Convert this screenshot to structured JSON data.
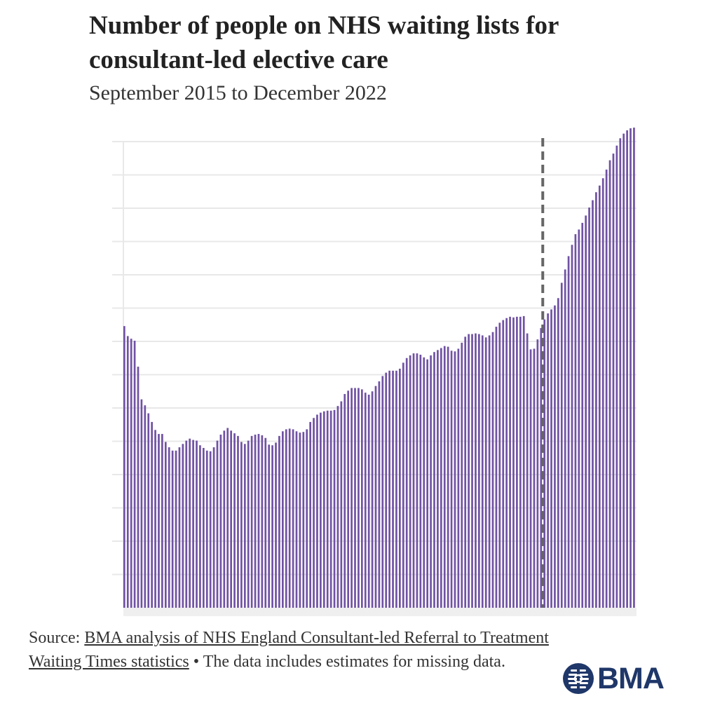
{
  "chart_data": {
    "type": "bar",
    "title": "Number of people on NHS waiting lists for consultant-led elective care",
    "subtitle": "September 2015 to December 2022",
    "xlabel": "",
    "ylabel": "",
    "bar_color": "#7052a3",
    "marker_color": "#666666",
    "ylim": [
      0,
      7.2
    ],
    "gridlines": [
      0.5,
      1.0,
      1.5,
      2.0,
      2.5,
      3.0,
      3.5,
      4.0,
      4.5,
      5.0,
      5.5,
      6.0,
      6.5,
      7.0
    ],
    "marker_after_index": 121,
    "values": [
      4.23,
      4.08,
      4.04,
      4.01,
      3.62,
      3.13,
      3.04,
      2.92,
      2.79,
      2.67,
      2.61,
      2.61,
      2.49,
      2.41,
      2.36,
      2.36,
      2.41,
      2.46,
      2.51,
      2.54,
      2.52,
      2.51,
      2.44,
      2.4,
      2.36,
      2.35,
      2.41,
      2.51,
      2.6,
      2.66,
      2.7,
      2.66,
      2.62,
      2.58,
      2.49,
      2.46,
      2.51,
      2.58,
      2.6,
      2.61,
      2.59,
      2.55,
      2.45,
      2.44,
      2.48,
      2.58,
      2.65,
      2.68,
      2.69,
      2.68,
      2.65,
      2.63,
      2.64,
      2.68,
      2.79,
      2.85,
      2.9,
      2.93,
      2.95,
      2.96,
      2.96,
      2.97,
      3.03,
      3.1,
      3.21,
      3.26,
      3.3,
      3.3,
      3.3,
      3.28,
      3.23,
      3.2,
      3.25,
      3.33,
      3.4,
      3.48,
      3.53,
      3.56,
      3.56,
      3.56,
      3.59,
      3.68,
      3.75,
      3.79,
      3.82,
      3.82,
      3.8,
      3.76,
      3.73,
      3.79,
      3.84,
      3.87,
      3.9,
      3.93,
      3.92,
      3.86,
      3.85,
      3.89,
      3.98,
      4.07,
      4.11,
      4.11,
      4.12,
      4.11,
      4.09,
      4.06,
      4.09,
      4.14,
      4.22,
      4.28,
      4.32,
      4.35,
      4.37,
      4.36,
      4.37,
      4.37,
      4.38,
      4.12,
      3.88,
      3.89,
      4.03,
      4.2,
      4.33,
      4.42,
      4.48,
      4.54,
      4.65,
      4.88,
      5.08,
      5.28,
      5.45,
      5.61,
      5.68,
      5.78,
      5.89,
      6.01,
      6.12,
      6.24,
      6.34,
      6.45,
      6.58,
      6.72,
      6.82,
      6.94,
      7.05,
      7.12,
      7.17,
      7.2,
      7.21
    ]
  },
  "footer": {
    "prefix": "Source: ",
    "link_text": "BMA analysis of NHS England Consultant-led Referral to Treatment Waiting Times statistics",
    "suffix": " • The data includes estimates for missing data."
  },
  "logo": {
    "text": "BMA",
    "color": "#1f3769"
  }
}
